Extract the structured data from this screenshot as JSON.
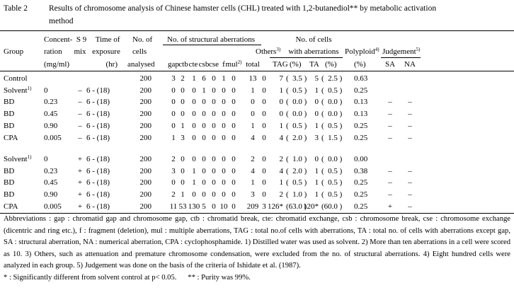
{
  "table_label": "Table 2",
  "title_line1": "Results of chromosome analysis of Chinese hamster cells (CHL) treated with 1,2-butanediol** by metabolic activation",
  "title_line2": "method",
  "headers": {
    "group": "Group",
    "conc": [
      "Concent-",
      "ration",
      "(mg/ml)"
    ],
    "s9": [
      "S 9",
      "mix"
    ],
    "time": [
      "Time of",
      "exposure",
      "(hr)"
    ],
    "cells": [
      "No. of",
      "cells",
      "analysed"
    ],
    "struct": "No. of structural aberrations",
    "sub": [
      "gap",
      "ctb",
      "cte",
      "csb",
      "cse",
      "f",
      "mul",
      "total"
    ],
    "mul_sup": "2)",
    "others": "Others",
    "others_sup": "3)",
    "withab": [
      "No. of cells",
      "with aberrations"
    ],
    "withab_sub": [
      "TAG",
      "(%)",
      "TA",
      "(%)"
    ],
    "poly": "Polyploid",
    "poly_sup": "4)",
    "poly_unit": "(%)",
    "judge": "Judgement",
    "judge_sup": "5)",
    "judge_sub": [
      "SA",
      "NA"
    ]
  },
  "rows": [
    [
      "Control",
      "",
      "",
      "",
      "200",
      "3",
      "2",
      "1",
      "6",
      "0",
      "1",
      "0",
      "13",
      "0",
      "7",
      "(  3.5 )",
      "5",
      "(  2.5 )",
      "0.63",
      "",
      ""
    ],
    [
      "Solvent",
      "0",
      "–",
      "6 - (18)",
      "200",
      "0",
      "0",
      "0",
      "1",
      "0",
      "0",
      "0",
      "1",
      "0",
      "1",
      "(  0.5 )",
      "1",
      "(  0.5 )",
      "0.25",
      "",
      ""
    ],
    [
      "BD",
      "0.23",
      "–",
      "6 - (18)",
      "200",
      "0",
      "0",
      "0",
      "0",
      "0",
      "0",
      "0",
      "0",
      "0",
      "0",
      "(  0.0 )",
      "0",
      "(  0.0 )",
      "0.13",
      "–",
      "–"
    ],
    [
      "BD",
      "0.45",
      "–",
      "6 - (18)",
      "200",
      "0",
      "0",
      "0",
      "0",
      "0",
      "0",
      "0",
      "0",
      "0",
      "0",
      "(  0.0 )",
      "0",
      "(  0.0 )",
      "0.13",
      "–",
      "–"
    ],
    [
      "BD",
      "0.90",
      "–",
      "6 - (18)",
      "200",
      "0",
      "1",
      "0",
      "0",
      "0",
      "0",
      "0",
      "1",
      "0",
      "1",
      "(  0.5 )",
      "1",
      "(  0.5 )",
      "0.25",
      "–",
      "–"
    ],
    [
      "CPA",
      "0.005",
      "–",
      "6 - (18)",
      "200",
      "1",
      "3",
      "0",
      "0",
      "0",
      "0",
      "0",
      "4",
      "0",
      "4",
      "(  2.0 )",
      "3",
      "(  1.5 )",
      "0.25",
      "–",
      "–"
    ],
    [
      "Solvent",
      "0",
      "+",
      "6 - (18)",
      "200",
      "2",
      "0",
      "0",
      "0",
      "0",
      "0",
      "0",
      "2",
      "0",
      "2",
      "(  1.0 )",
      "0",
      "(  0.0 )",
      "0.00",
      "",
      ""
    ],
    [
      "BD",
      "0.23",
      "+",
      "6 - (18)",
      "200",
      "3",
      "0",
      "1",
      "0",
      "0",
      "0",
      "0",
      "4",
      "0",
      "4",
      "(  2.0 )",
      "1",
      "(  0.5 )",
      "0.38",
      "–",
      "–"
    ],
    [
      "BD",
      "0.45",
      "+",
      "6 - (18)",
      "200",
      "0",
      "0",
      "1",
      "0",
      "0",
      "0",
      "0",
      "1",
      "0",
      "1",
      "(  0.5 )",
      "1",
      "(  0.5 )",
      "0.25",
      "–",
      "–"
    ],
    [
      "BD",
      "0.90",
      "+",
      "6 - (18)",
      "200",
      "2",
      "1",
      "0",
      "0",
      "0",
      "0",
      "0",
      "3",
      "0",
      "2",
      "(  1.0 )",
      "1",
      "(  0.5 )",
      "0.25",
      "–",
      "–"
    ],
    [
      "CPA",
      "0.005",
      "+",
      "6 - (18)",
      "200",
      "11",
      "53",
      "130",
      "5",
      "0",
      "10",
      "0",
      "209",
      "3",
      "126*",
      "(63.0 )",
      "120*",
      "(60.0 )",
      "0.25",
      "+",
      "–"
    ]
  ],
  "solvent_sup": "1)",
  "footnote": "Abbreviations  :  gap : chromatid gap and chromosome gap,  ctb : chromatid break,  cte:  chromatid exchange,  csb : chromosome break,  cse : chromosome exchange (dicentric and ring etc.),  f : fragment (deletion),  mul : multiple aberrations,  TAG : total no.of cells with aberrations, TA : total no. of cells with aberrations except gap, SA : structural aberration, NA : numerical aberration, CPA : cyclophosphamide.     1) Distilled water was used as solvent.     2) More than ten aberrations in a cell were scored as 10.     3) Others, such as attenuation and premature chromosome condensation, were excluded from the no. of structural aberrations.     4) Eight hundred cells were analyzed in each group.     5) Judgement was done on the basis of the criteria of Ishidate et al. (1987).",
  "footnote2": "* : Significantly different from solvent control at p< 0.05.      ** : Purity was 99%."
}
